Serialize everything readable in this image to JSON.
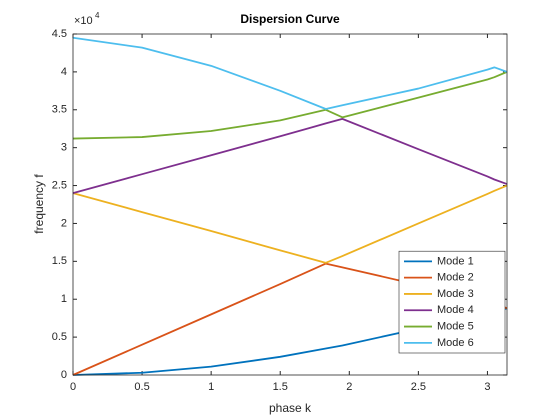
{
  "chart_data": {
    "type": "line",
    "title": "Dispersion Curve",
    "x_label": "phase k",
    "y_label": "frequency f",
    "y_exponent": {
      "base": "×10",
      "power": "4"
    },
    "x": [
      0,
      0.5,
      1,
      1.5,
      1.83,
      1.95,
      2.5,
      3,
      3.05,
      3.1416
    ],
    "series": [
      {
        "name": "Mode 1",
        "color": "#0072BD",
        "values": [
          0,
          300,
          1100,
          2400,
          3500,
          3900,
          6100,
          8200,
          8400,
          8800
        ]
      },
      {
        "name": "Mode 2",
        "color": "#D95319",
        "values": [
          0,
          4000,
          8000,
          12000,
          14700,
          14200,
          11900,
          9700,
          9500,
          8800
        ]
      },
      {
        "name": "Mode 3",
        "color": "#EDB120",
        "values": [
          24000,
          21500,
          19000,
          16450,
          14800,
          15700,
          20000,
          23900,
          24300,
          25000
        ]
      },
      {
        "name": "Mode 4",
        "color": "#7E2F8E",
        "values": [
          24000,
          26500,
          29000,
          31500,
          33200,
          33800,
          29800,
          26200,
          25800,
          25200
        ]
      },
      {
        "name": "Mode 5",
        "color": "#77AC30",
        "values": [
          31200,
          31400,
          32200,
          33600,
          35000,
          34000,
          36600,
          39000,
          39300,
          40000
        ]
      },
      {
        "name": "Mode 6",
        "color": "#4DBEEE",
        "values": [
          44500,
          43200,
          40800,
          37500,
          35100,
          35600,
          37800,
          40300,
          40600,
          40000
        ]
      }
    ],
    "xlim": [
      0,
      3.1416
    ],
    "xticks": [
      0,
      0.5,
      1,
      1.5,
      2,
      2.5,
      3
    ],
    "ylim": [
      0,
      45000
    ],
    "yticks": [
      0,
      {
        "value": 5000,
        "label": "0.5"
      },
      {
        "value": 10000,
        "label": "1"
      },
      {
        "value": 15000,
        "label": "1.5"
      },
      {
        "value": 20000,
        "label": "2"
      },
      {
        "value": 25000,
        "label": "2.5"
      },
      {
        "value": 30000,
        "label": "3"
      },
      {
        "value": 35000,
        "label": "3.5"
      },
      {
        "value": 40000,
        "label": "4"
      },
      {
        "value": 45000,
        "label": "4.5"
      }
    ],
    "grid": false,
    "legend": "southeast"
  }
}
